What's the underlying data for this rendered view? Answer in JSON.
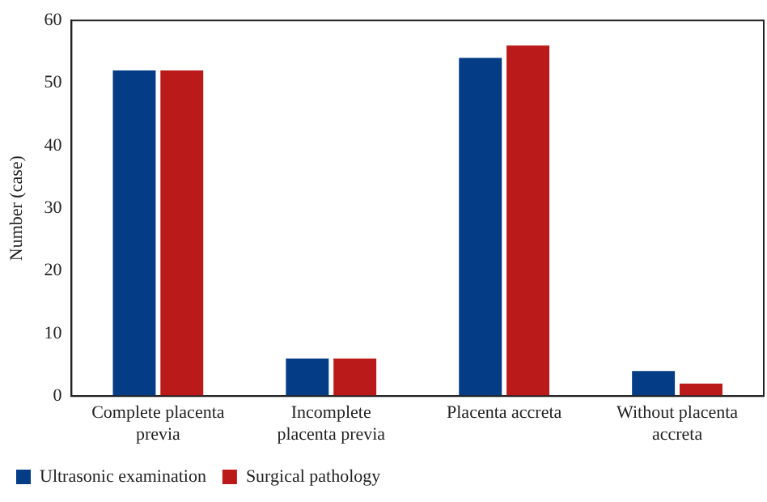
{
  "chart_data": {
    "type": "bar",
    "ylabel": "Number (case)",
    "categories": [
      "Complete placenta previa",
      "Incomplete placenta previa",
      "Placenta accreta",
      "Without placenta accreta"
    ],
    "series": [
      {
        "name": "Ultrasonic examination",
        "color": "#043c86",
        "values": [
          52,
          6,
          54,
          4
        ]
      },
      {
        "name": "Surgical pathology",
        "color": "#bb1a1a",
        "values": [
          52,
          6,
          56,
          2
        ]
      }
    ],
    "ylim": [
      0,
      60
    ],
    "yticks": [
      0,
      10,
      20,
      30,
      40,
      50,
      60
    ],
    "grid": false,
    "legend": "bottom left"
  }
}
